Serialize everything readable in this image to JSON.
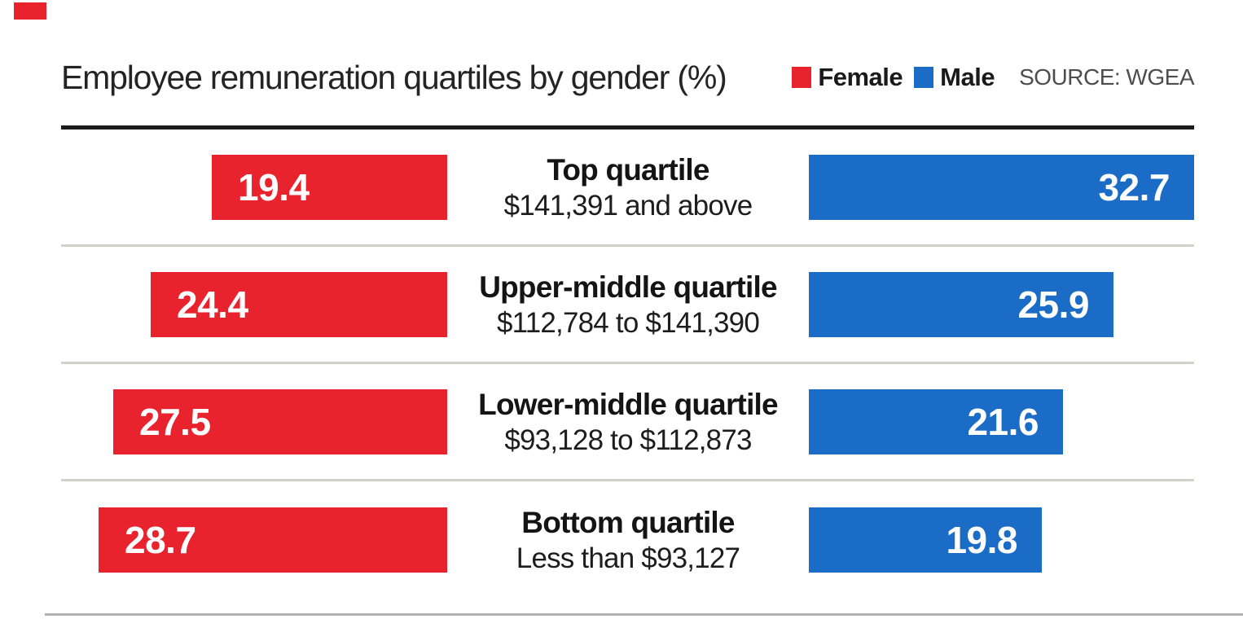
{
  "corner_mark_color": "#e8232e",
  "header": {
    "source": "SOURCE: WGEA"
  },
  "chart_data": {
    "type": "bar",
    "title": "Employee remuneration quartiles by gender (%)",
    "orientation": "horizontal-diverging",
    "categories": [
      "Top quartile",
      "Upper-middle quartile",
      "Lower-middle quartile",
      "Bottom quartile"
    ],
    "category_sublabels": [
      "$141,391 and above",
      "$112,784 to $141,390",
      "$93,128 to $112,873",
      "Less than $93,127"
    ],
    "series": [
      {
        "name": "Female",
        "color": "#e8232e",
        "values": [
          19.4,
          24.4,
          27.5,
          28.7
        ]
      },
      {
        "name": "Male",
        "color": "#1b6cc6",
        "values": [
          32.7,
          25.9,
          21.6,
          19.8
        ]
      }
    ],
    "value_unit": "%",
    "source": "WGEA",
    "legend_position": "top-right",
    "grid": "row separators only",
    "layout": "female bars right-aligned in left column, male bars left-aligned in right column, category labels centered between"
  }
}
